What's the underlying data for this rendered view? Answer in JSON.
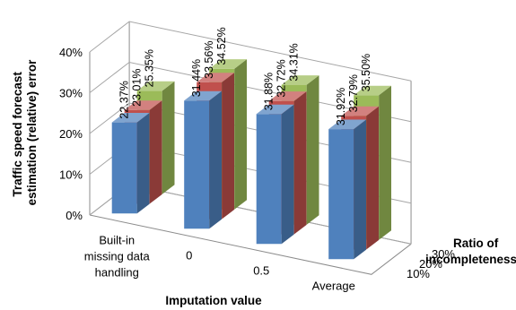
{
  "chart_data": {
    "type": "bar",
    "subtype": "3d-clustered-column",
    "title": "",
    "categories": [
      "Built-in missing data handling",
      "0",
      "0.5",
      "Average"
    ],
    "category_lines": [
      [
        "Built-in",
        "missing data",
        "handling"
      ],
      [
        "0"
      ],
      [
        "0.5"
      ],
      [
        "Average"
      ]
    ],
    "series": [
      {
        "name": "10%",
        "values": [
          22.37,
          31.44,
          31.88,
          31.92
        ],
        "labels": [
          "22.37%",
          "31.44%",
          "31.88%",
          "31.92%"
        ],
        "color": "#4f81bd"
      },
      {
        "name": "20%",
        "values": [
          23.01,
          33.56,
          32.72,
          32.79
        ],
        "labels": [
          "23.01%",
          "33.56%",
          "32.72%",
          "32.79%"
        ],
        "color": "#c0504d"
      },
      {
        "name": "30%",
        "values": [
          25.35,
          34.52,
          34.31,
          35.5
        ],
        "labels": [
          "25.35%",
          "34.52%",
          "34.31%",
          "35.50%"
        ],
        "color": "#9bbb59"
      }
    ],
    "ylim": [
      0,
      40
    ],
    "yticks": [
      "0%",
      "10%",
      "20%",
      "30%",
      "40%"
    ],
    "ylabel_lines": [
      "Traffic speed forecast",
      "estimation (relative) error"
    ],
    "xlabel": "Imputation value",
    "zlabel_lines": [
      "Ratio of",
      "incompleteness"
    ],
    "grid": true,
    "legend": "none"
  }
}
